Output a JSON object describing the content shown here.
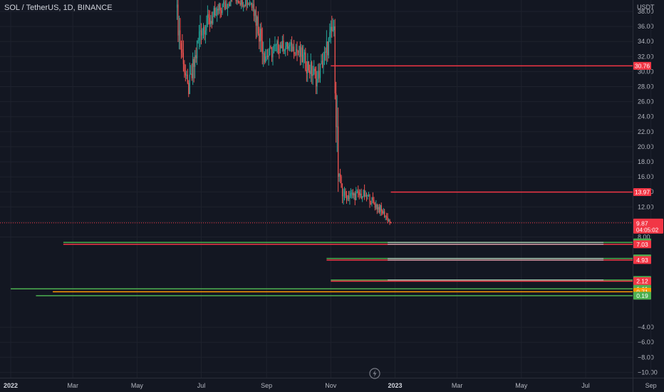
{
  "header": {
    "symbol": "SOL / TetherUS, 1D, BINANCE",
    "currency": "USDT"
  },
  "icons": {
    "replay": "lightning-icon"
  },
  "colors": {
    "background": "#131722",
    "grid": "#1e222d",
    "axis_text": "#b2b5be",
    "up": "#26a69a",
    "down": "#ef5350",
    "level_red": "#f23645",
    "level_green": "#4caf50",
    "level_orange": "#ff9800",
    "level_white": "#d1d4dc",
    "current_price": "#f23645"
  },
  "chart_data": {
    "type": "candlestick",
    "title": "SOL / TetherUS, 1D, BINANCE",
    "ylabel": "USDT",
    "ylim": [
      -10.7,
      38.2
    ],
    "y_ticks": [
      "38.00",
      "36.00",
      "34.00",
      "32.00",
      "30.00",
      "28.00",
      "26.00",
      "24.00",
      "22.00",
      "20.00",
      "18.00",
      "16.00",
      "14.00",
      "12.00",
      "10.00",
      "8.00",
      "−4.00",
      "−6.00",
      "−8.00",
      "−10.00"
    ],
    "x_ticks": [
      {
        "label": "2022",
        "date": "2022-01-01"
      },
      {
        "label": "Mar",
        "date": "2022-03-01"
      },
      {
        "label": "May",
        "date": "2022-05-01"
      },
      {
        "label": "Jul",
        "date": "2022-07-01"
      },
      {
        "label": "Sep",
        "date": "2022-09-01"
      },
      {
        "label": "Nov",
        "date": "2022-11-01"
      },
      {
        "label": "2023",
        "date": "2023-01-01"
      },
      {
        "label": "Mar",
        "date": "2023-03-01"
      },
      {
        "label": "May",
        "date": "2023-05-01"
      },
      {
        "label": "Jul",
        "date": "2023-07-01"
      },
      {
        "label": "Sep",
        "date": "2023-09-01"
      }
    ],
    "price_segments": [
      {
        "from": "2022-06-08",
        "to": "2022-06-15",
        "open": 38.5,
        "close": 31.0,
        "low": 30.0,
        "high": 40.0
      },
      {
        "from": "2022-06-15",
        "to": "2022-06-20",
        "open": 31.0,
        "close": 27.0,
        "low": 26.0,
        "high": 32.0
      },
      {
        "from": "2022-06-20",
        "to": "2022-07-01",
        "open": 27.0,
        "close": 35.5,
        "low": 27.0,
        "high": 37.5
      },
      {
        "from": "2022-07-01",
        "to": "2022-07-15",
        "open": 35.5,
        "close": 37.5,
        "low": 33.5,
        "high": 40.0
      },
      {
        "from": "2022-07-15",
        "to": "2022-08-01",
        "open": 37.5,
        "close": 40.0,
        "low": 36.0,
        "high": 42.0
      },
      {
        "from": "2022-08-01",
        "to": "2022-08-20",
        "open": 40.0,
        "close": 39.0,
        "low": 37.0,
        "high": 42.0
      },
      {
        "from": "2022-08-20",
        "to": "2022-09-01",
        "open": 39.0,
        "close": 32.0,
        "low": 30.5,
        "high": 40.0
      },
      {
        "from": "2022-09-01",
        "to": "2022-09-15",
        "open": 32.0,
        "close": 33.5,
        "low": 30.0,
        "high": 36.0
      },
      {
        "from": "2022-09-15",
        "to": "2022-09-30",
        "open": 33.5,
        "close": 33.0,
        "low": 31.0,
        "high": 35.5
      },
      {
        "from": "2022-09-30",
        "to": "2022-10-20",
        "open": 33.0,
        "close": 29.0,
        "low": 27.0,
        "high": 34.0
      },
      {
        "from": "2022-10-20",
        "to": "2022-10-28",
        "open": 29.0,
        "close": 32.5,
        "low": 28.5,
        "high": 34.5
      },
      {
        "from": "2022-10-28",
        "to": "2022-11-05",
        "open": 32.5,
        "close": 36.0,
        "low": 30.0,
        "high": 38.3
      },
      {
        "from": "2022-11-05",
        "to": "2022-11-09",
        "open": 36.0,
        "close": 16.0,
        "low": 14.0,
        "high": 37.0
      },
      {
        "from": "2022-11-09",
        "to": "2022-11-14",
        "open": 16.0,
        "close": 13.5,
        "low": 11.5,
        "high": 18.0
      },
      {
        "from": "2022-11-14",
        "to": "2022-12-05",
        "open": 13.5,
        "close": 13.6,
        "low": 11.0,
        "high": 15.0
      },
      {
        "from": "2022-12-05",
        "to": "2022-12-20",
        "open": 13.6,
        "close": 11.5,
        "low": 10.8,
        "high": 14.3
      },
      {
        "from": "2022-12-20",
        "to": "2022-12-29",
        "open": 11.5,
        "close": 9.87,
        "low": 9.6,
        "high": 12.2
      }
    ],
    "current_price": {
      "value": 9.87,
      "label": "9.87",
      "countdown": "04:05:02"
    },
    "levels": [
      {
        "label": "30.76",
        "value": 30.76,
        "color": "#f23645",
        "from": "2022-11-01",
        "lines": [
          "#f23645"
        ]
      },
      {
        "label": "13.97",
        "value": 13.97,
        "color": "#f23645",
        "from": "2022-12-28",
        "lines": [
          "#f23645"
        ]
      },
      {
        "label": "7.28",
        "value": 7.28,
        "color": "#4caf50",
        "from": "2022-02-20",
        "lines": [
          "#4caf50",
          "#d1d4dc"
        ]
      },
      {
        "label": "7.03",
        "value": 7.03,
        "color": "#f23645",
        "from": "2022-02-20",
        "lines": [
          "#f23645",
          "#d1d4dc"
        ]
      },
      {
        "label": "5.15",
        "value": 5.15,
        "color": "#4caf50",
        "from": "2022-10-28",
        "lines": [
          "#4caf50",
          "#d1d4dc"
        ]
      },
      {
        "label": "4.93",
        "value": 4.93,
        "color": "#f23645",
        "from": "2022-10-28",
        "lines": [
          "#f23645",
          "#d1d4dc"
        ]
      },
      {
        "label": "2.28",
        "value": 2.28,
        "color": "#4caf50",
        "from": "2022-11-01",
        "lines": [
          "#4caf50",
          "#d1d4dc"
        ]
      },
      {
        "label": "2.12",
        "value": 2.12,
        "color": "#f23645",
        "from": "2022-11-01",
        "lines": [
          "#f23645"
        ]
      },
      {
        "label": "1.11",
        "value": 1.11,
        "color": "#4caf50",
        "from": "2022-01-01",
        "lines": [
          "#4caf50"
        ]
      },
      {
        "label": "0.71",
        "value": 0.71,
        "color": "#ff9800",
        "from": "2022-02-10",
        "lines": [
          "#ff9800"
        ]
      },
      {
        "label": "0.19",
        "value": 0.19,
        "color": "#4caf50",
        "from": "2022-01-25",
        "lines": [
          "#4caf50"
        ]
      }
    ],
    "grid": true
  }
}
